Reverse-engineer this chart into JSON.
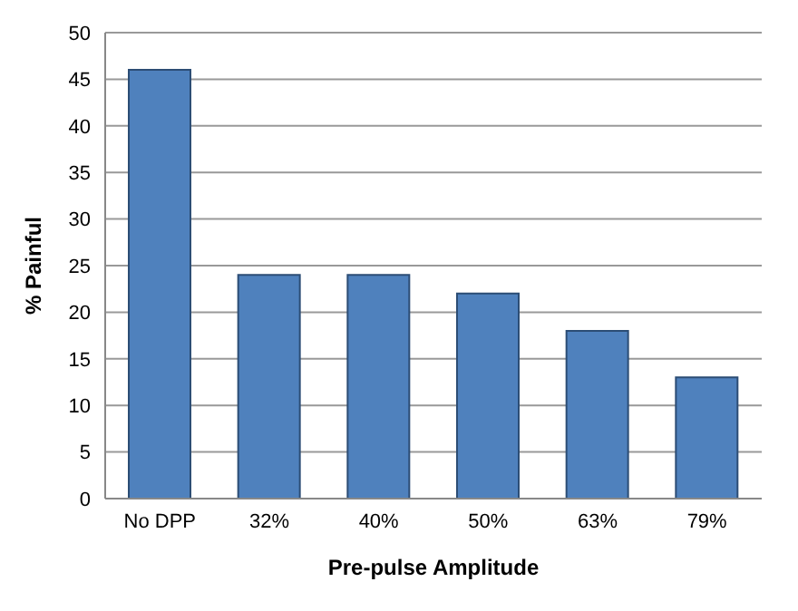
{
  "chart_data": {
    "type": "bar",
    "xlabel": "Pre-pulse Amplitude",
    "ylabel": "% Painful",
    "categories": [
      "No DPP",
      "32%",
      "40%",
      "50%",
      "63%",
      "79%"
    ],
    "values": [
      46,
      24,
      24,
      22,
      18,
      13
    ],
    "color": "#4f81bd",
    "ylim": [
      0,
      50
    ],
    "yticks": [
      0,
      5,
      10,
      15,
      20,
      25,
      30,
      35,
      40,
      45,
      50
    ],
    "grid": "y"
  }
}
